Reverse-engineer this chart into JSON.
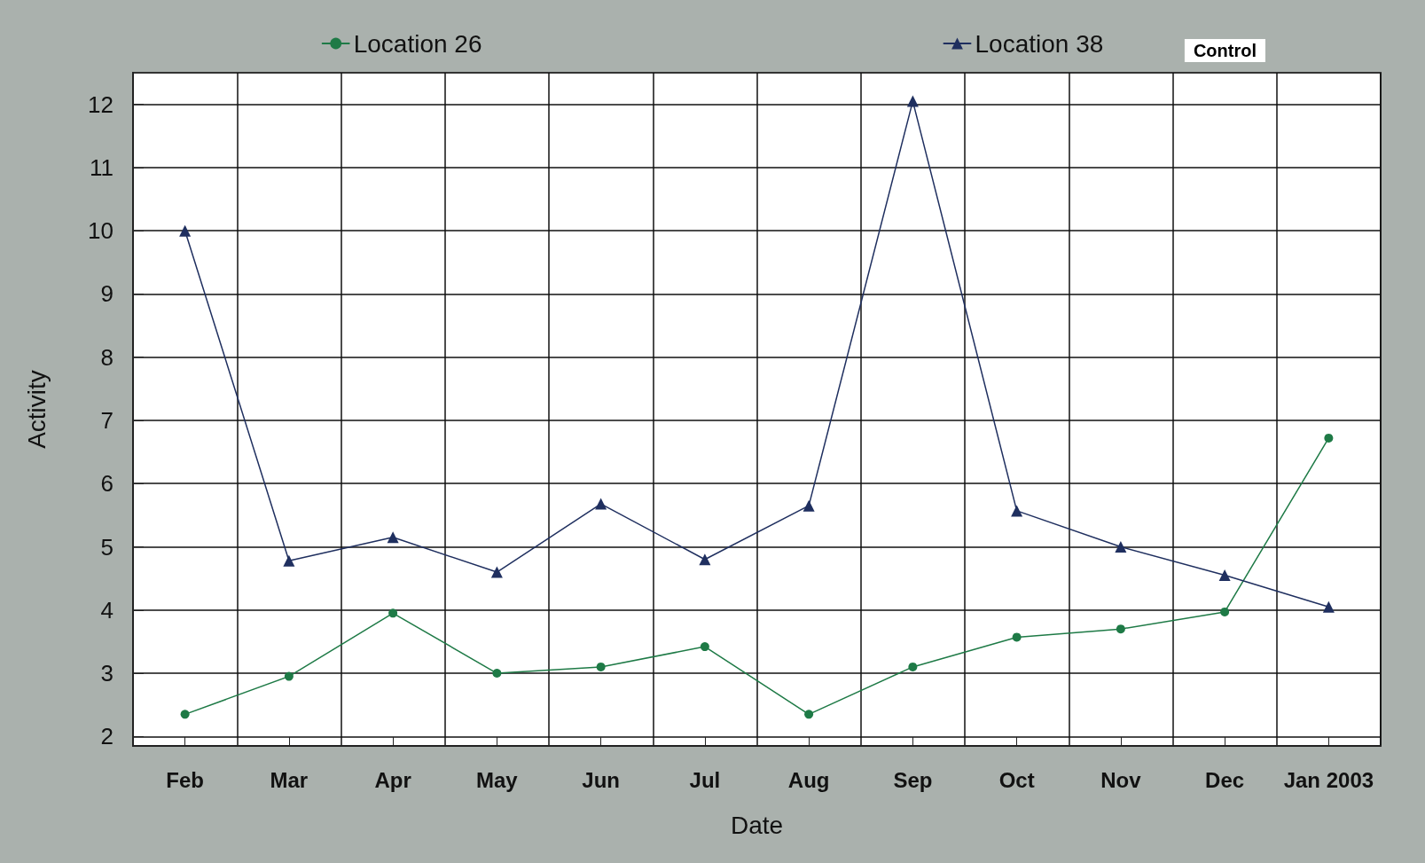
{
  "chart_data": {
    "type": "line",
    "xlabel": "Date",
    "ylabel": "Activity",
    "categories": [
      "Feb",
      "Mar",
      "Apr",
      "May",
      "Jun",
      "Jul",
      "Aug",
      "Sep",
      "Oct",
      "Nov",
      "Dec",
      "Jan 2003"
    ],
    "series": [
      {
        "name": "Location 26",
        "color": "#1e7a46",
        "marker": "circle",
        "values": [
          2.35,
          2.95,
          3.95,
          3.0,
          3.1,
          3.42,
          2.35,
          3.1,
          3.57,
          3.7,
          3.97,
          6.72
        ]
      },
      {
        "name": "Location 38",
        "color": "#1f2f5f",
        "marker": "triangle",
        "values": [
          10.0,
          4.78,
          5.15,
          4.6,
          5.68,
          4.8,
          5.65,
          12.05,
          5.57,
          5.0,
          4.55,
          4.05
        ]
      }
    ],
    "ylim": [
      1.85,
      12.5
    ],
    "yticks": [
      2,
      3,
      4,
      5,
      6,
      7,
      8,
      9,
      10,
      11,
      12
    ],
    "grid": true,
    "legend": "top",
    "line_style": "solid",
    "annotations": [
      "Control"
    ]
  }
}
